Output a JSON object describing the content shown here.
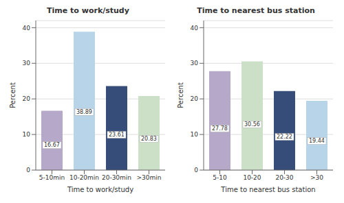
{
  "chart_data": [
    {
      "type": "bar",
      "title": "Time to work/study",
      "xlabel": "Time to work/study",
      "ylabel": "Percent",
      "categories": [
        "5-10min",
        "10-20min",
        "20-30min",
        ">30min"
      ],
      "values": [
        16.67,
        38.89,
        23.61,
        20.83
      ],
      "colors": [
        "#b5a8c8",
        "#b8d4e8",
        "#364d7a",
        "#cce0c8"
      ],
      "ylim": [
        0,
        42
      ],
      "yticks": [
        0,
        10,
        20,
        30,
        40
      ],
      "grid": true,
      "data_labels": true
    },
    {
      "type": "bar",
      "title": "Time to nearest bus station",
      "xlabel": "Time to nearest bus station",
      "ylabel": "Percent",
      "categories": [
        "5-10",
        "10-20",
        "20-30",
        ">30"
      ],
      "values": [
        27.78,
        30.56,
        22.22,
        19.44
      ],
      "colors": [
        "#b5a8c8",
        "#cce0c8",
        "#364d7a",
        "#b8d4e8"
      ],
      "ylim": [
        0,
        42
      ],
      "yticks": [
        0,
        10,
        20,
        30,
        40
      ],
      "grid": true,
      "data_labels": true
    }
  ]
}
